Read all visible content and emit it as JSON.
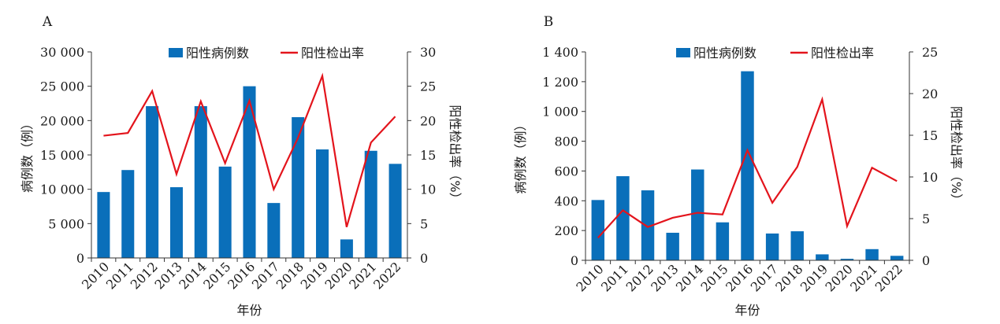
{
  "chart_data": [
    {
      "panel_label": "A",
      "type": "bar",
      "categories": [
        "2010",
        "2011",
        "2012",
        "2013",
        "2014",
        "2015",
        "2016",
        "2017",
        "2018",
        "2019",
        "2020",
        "2021",
        "2022"
      ],
      "series": [
        {
          "name": "阳性病例数",
          "type": "bar",
          "axis": "left",
          "color": "#0a6fba",
          "values": [
            9600,
            12800,
            22100,
            10300,
            22100,
            13300,
            25000,
            8000,
            20500,
            15800,
            2700,
            15600,
            13700
          ]
        },
        {
          "name": "阳性检出率",
          "type": "line",
          "axis": "right",
          "color": "#e3141c",
          "values": [
            17.8,
            18.2,
            24.3,
            12.2,
            22.8,
            13.8,
            22.9,
            10.0,
            17.5,
            26.5,
            4.5,
            16.8,
            20.6
          ]
        }
      ],
      "xlabel": "年份",
      "ylabel": "病例数（例）",
      "ylabel_right": "阳性检出率（%）",
      "ylim": [
        0,
        30000
      ],
      "ylim_right": [
        0,
        30
      ],
      "yticks": [
        "0",
        "5 000",
        "10 000",
        "15 000",
        "20 000",
        "25 000",
        "30 000"
      ],
      "yticks_right": [
        "0",
        "5",
        "10",
        "15",
        "20",
        "25",
        "30"
      ],
      "legend_position": "top"
    },
    {
      "panel_label": "B",
      "type": "bar",
      "categories": [
        "2010",
        "2011",
        "2012",
        "2013",
        "2014",
        "2015",
        "2016",
        "2017",
        "2018",
        "2019",
        "2020",
        "2021",
        "2022"
      ],
      "series": [
        {
          "name": "阳性病例数",
          "type": "bar",
          "axis": "left",
          "color": "#0a6fba",
          "values": [
            405,
            565,
            470,
            185,
            610,
            255,
            1270,
            180,
            195,
            40,
            10,
            75,
            30
          ]
        },
        {
          "name": "阳性检出率",
          "type": "line",
          "axis": "right",
          "color": "#e3141c",
          "values": [
            2.7,
            6.0,
            4.0,
            5.1,
            5.7,
            5.5,
            13.2,
            6.9,
            11.2,
            19.3,
            4.1,
            11.1,
            9.5
          ]
        }
      ],
      "xlabel": "年份",
      "ylabel": "病例数（例）",
      "ylabel_right": "阳性检出率（%）",
      "ylim": [
        0,
        1400
      ],
      "ylim_right": [
        0,
        25
      ],
      "yticks": [
        "0",
        "200",
        "400",
        "600",
        "800",
        "1 000",
        "1 200",
        "1 400"
      ],
      "yticks_right": [
        "0",
        "5",
        "10",
        "15",
        "20",
        "25"
      ],
      "legend_position": "top"
    }
  ],
  "colors": {
    "bar": "#0a6fba",
    "line": "#e3141c",
    "axis": "#333333"
  }
}
